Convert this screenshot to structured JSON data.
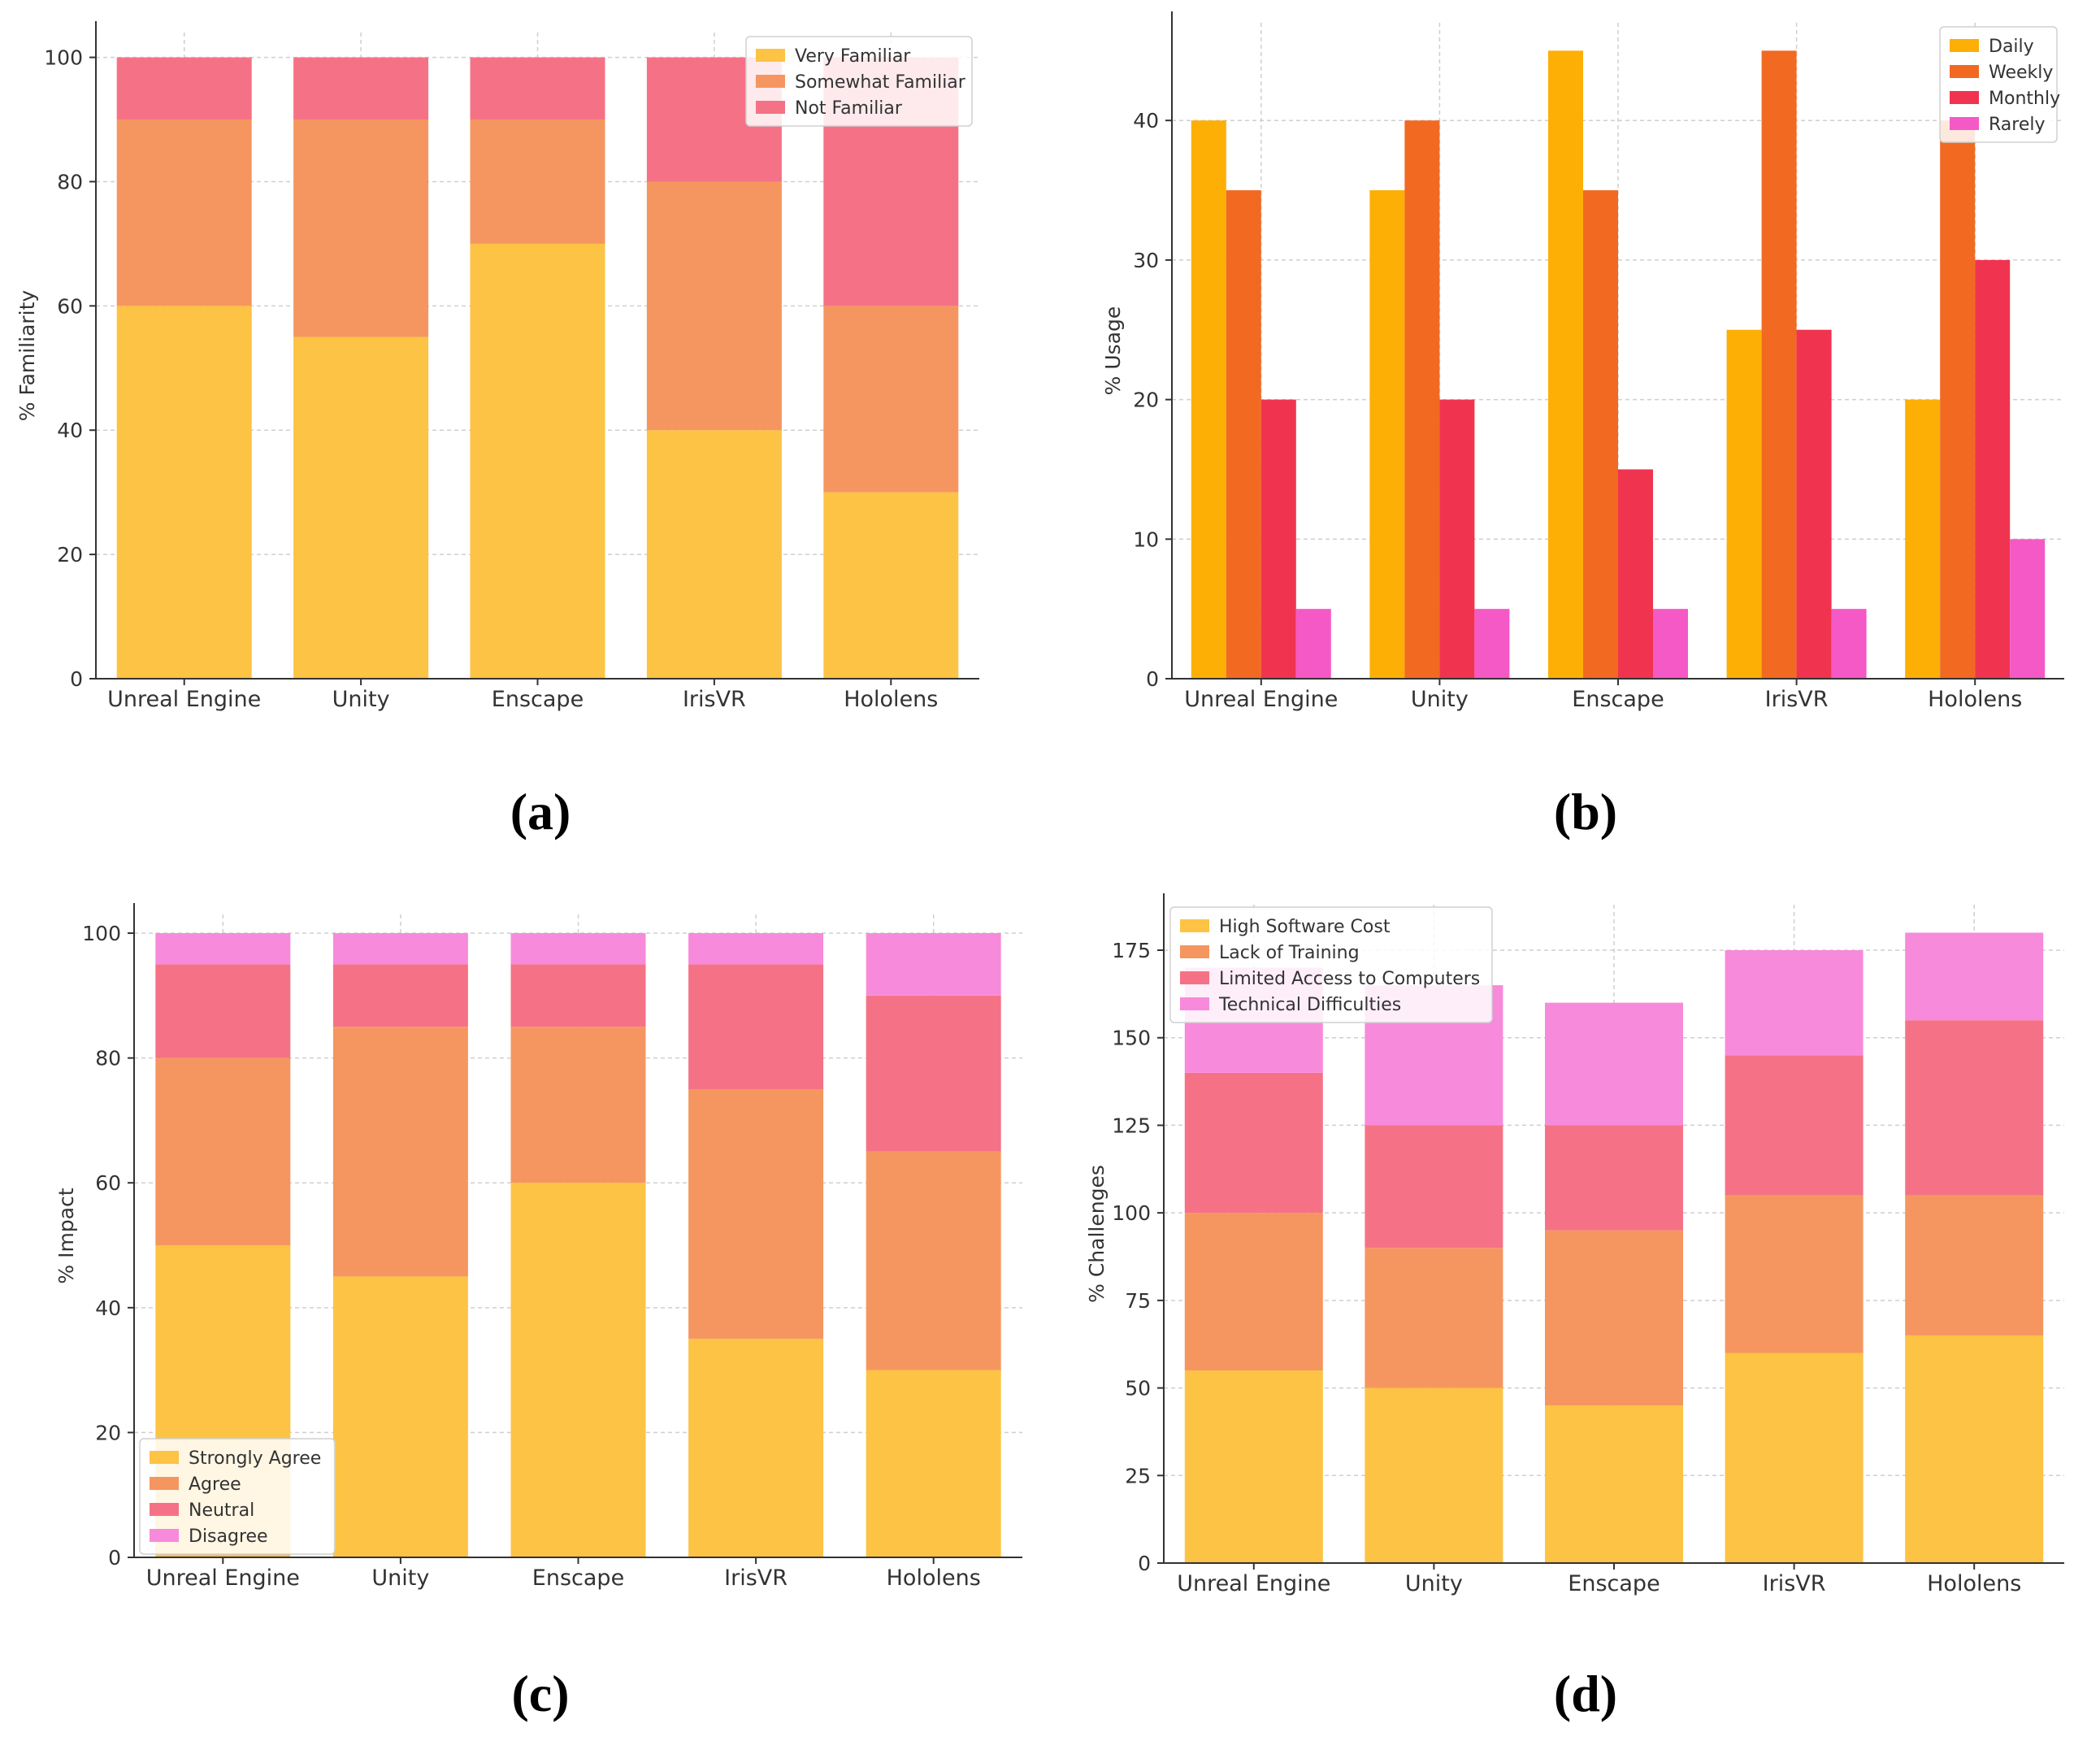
{
  "chart_data": [
    {
      "panel": "(a)",
      "type": "bar",
      "stacked": true,
      "title": "",
      "xlabel": "",
      "ylabel": "% Familiarity",
      "ylim": [
        0,
        104
      ],
      "yticks": [
        0,
        20,
        40,
        60,
        80,
        100
      ],
      "grid": true,
      "legend_position": "top-right",
      "categories": [
        "Unreal Engine",
        "Unity",
        "Enscape",
        "IrisVR",
        "Hololens"
      ],
      "series": [
        {
          "name": "Very Familiar",
          "color": "#FDC344",
          "values": [
            60,
            55,
            70,
            40,
            30
          ]
        },
        {
          "name": "Somewhat Familiar",
          "color": "#F59660",
          "values": [
            30,
            35,
            20,
            40,
            30
          ]
        },
        {
          "name": "Not Familiar",
          "color": "#F57286",
          "values": [
            10,
            10,
            10,
            20,
            40
          ]
        }
      ]
    },
    {
      "panel": "(b)",
      "type": "bar",
      "stacked": false,
      "title": "",
      "xlabel": "",
      "ylabel": "% Usage",
      "ylim": [
        0,
        47
      ],
      "yticks": [
        0,
        10,
        20,
        30,
        40
      ],
      "grid": true,
      "legend_position": "top-right",
      "categories": [
        "Unreal Engine",
        "Unity",
        "Enscape",
        "IrisVR",
        "Hololens"
      ],
      "series": [
        {
          "name": "Daily",
          "color": "#FDAF06",
          "values": [
            40,
            35,
            45,
            25,
            20
          ]
        },
        {
          "name": "Weekly",
          "color": "#F26922",
          "values": [
            35,
            40,
            35,
            45,
            40
          ]
        },
        {
          "name": "Monthly",
          "color": "#F0344F",
          "values": [
            20,
            20,
            15,
            25,
            30
          ]
        },
        {
          "name": "Rarely",
          "color": "#F559C6",
          "values": [
            5,
            5,
            5,
            5,
            10
          ]
        }
      ]
    },
    {
      "panel": "(c)",
      "type": "bar",
      "stacked": true,
      "title": "",
      "xlabel": "",
      "ylabel": "% Impact",
      "ylim": [
        0,
        103
      ],
      "yticks": [
        0,
        20,
        40,
        60,
        80,
        100
      ],
      "grid": true,
      "legend_position": "bottom-left",
      "categories": [
        "Unreal Engine",
        "Unity",
        "Enscape",
        "IrisVR",
        "Hololens"
      ],
      "series": [
        {
          "name": "Strongly Agree",
          "color": "#FDC344",
          "values": [
            50,
            45,
            60,
            35,
            30
          ]
        },
        {
          "name": "Agree",
          "color": "#F59660",
          "values": [
            30,
            40,
            25,
            40,
            35
          ]
        },
        {
          "name": "Neutral",
          "color": "#F57286",
          "values": [
            15,
            10,
            10,
            20,
            25
          ]
        },
        {
          "name": "Disagree",
          "color": "#F78ADA",
          "values": [
            5,
            5,
            5,
            5,
            10
          ]
        }
      ]
    },
    {
      "panel": "(d)",
      "type": "bar",
      "stacked": true,
      "title": "",
      "xlabel": "",
      "ylabel": "% Challenges",
      "ylim": [
        0,
        188
      ],
      "yticks": [
        0,
        25,
        50,
        75,
        100,
        125,
        150,
        175
      ],
      "grid": true,
      "legend_position": "top-left",
      "categories": [
        "Unreal Engine",
        "Unity",
        "Enscape",
        "IrisVR",
        "Hololens"
      ],
      "series": [
        {
          "name": "High Software Cost",
          "color": "#FDC344",
          "values": [
            55,
            50,
            45,
            60,
            65
          ]
        },
        {
          "name": "Lack of Training",
          "color": "#F59660",
          "values": [
            45,
            40,
            50,
            45,
            40
          ]
        },
        {
          "name": "Limited Access to Computers",
          "color": "#F57286",
          "values": [
            40,
            35,
            30,
            40,
            50
          ]
        },
        {
          "name": "Technical Difficulties",
          "color": "#F78ADA",
          "values": [
            30,
            40,
            35,
            30,
            25
          ]
        }
      ]
    }
  ]
}
